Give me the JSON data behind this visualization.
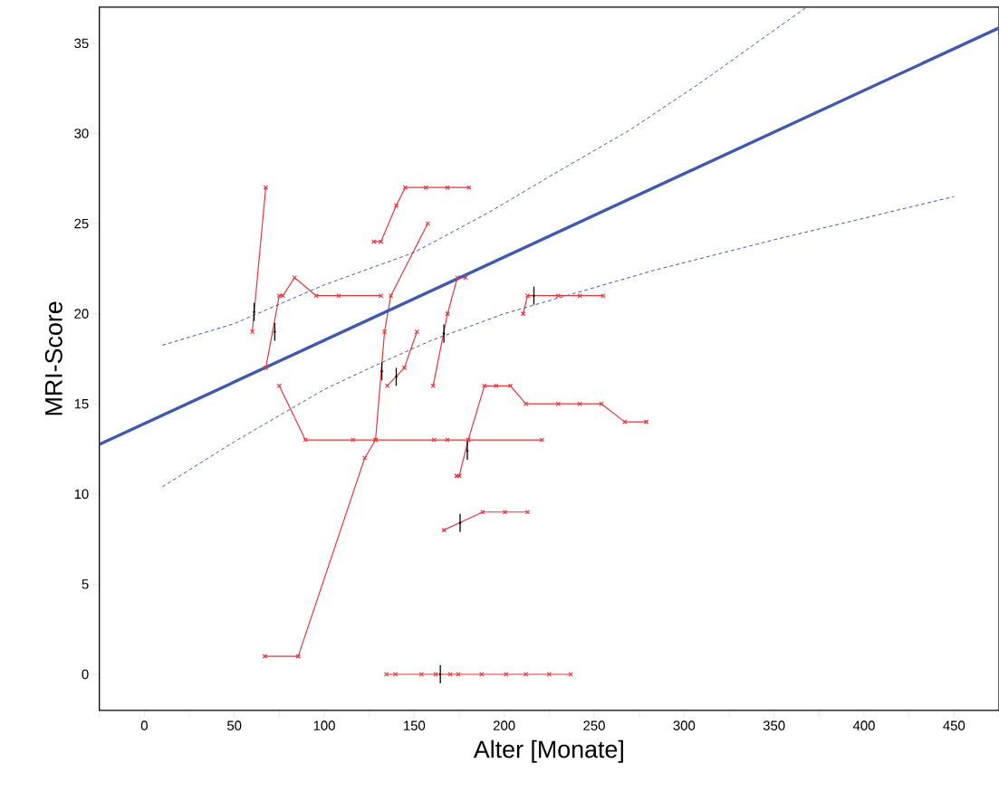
{
  "chart_data": {
    "type": "line",
    "xlabel": "Alter [Monate]",
    "ylabel": "MRI-Score",
    "xlim": [
      -25,
      475
    ],
    "ylim": [
      -2,
      37
    ],
    "xticks": [
      {
        "value": -25,
        "label": null
      },
      0,
      {
        "value": 25,
        "label": null
      },
      50,
      {
        "value": 75,
        "label": null
      },
      100,
      {
        "value": 125,
        "label": null
      },
      150,
      {
        "value": 175,
        "label": null
      },
      200,
      {
        "value": 225,
        "label": null
      },
      250,
      {
        "value": 275,
        "label": null
      },
      300,
      {
        "value": 325,
        "label": null
      },
      350,
      {
        "value": 375,
        "label": null
      },
      400,
      {
        "value": 425,
        "label": null
      },
      450,
      {
        "value": 475,
        "label": null
      }
    ],
    "yticks": [
      0,
      5,
      10,
      15,
      20,
      25,
      30,
      35
    ],
    "series": [
      {
        "color": "#e8353b",
        "marker": "cross",
        "x": [
          60,
          67.5
        ],
        "values": [
          19,
          27
        ]
      },
      {
        "color": "#e8353b",
        "marker": "cross",
        "x": [
          67.5,
          75,
          77,
          83.5,
          95.5,
          108,
          131.5
        ],
        "values": [
          17,
          21,
          21,
          22,
          21,
          21,
          21
        ]
      },
      {
        "color": "#e8353b",
        "marker": "cross",
        "x": [
          67,
          85.5,
          122.5,
          128.5,
          133.5,
          137,
          157.5
        ],
        "values": [
          1,
          1,
          12,
          13,
          19,
          21,
          25
        ]
      },
      {
        "color": "#e8353b",
        "marker": "cross",
        "x": [
          75,
          89.5,
          116,
          128.5,
          161,
          168.5,
          180,
          221
        ],
        "values": [
          16,
          13,
          13,
          13,
          13,
          13,
          13,
          13
        ]
      },
      {
        "color": "#e8353b",
        "marker": "cross",
        "x": [
          135,
          144.5,
          151.5
        ],
        "values": [
          16,
          17,
          19
        ]
      },
      {
        "color": "#e8353b",
        "marker": "cross",
        "x": [
          160.5,
          168.5,
          174,
          178.5
        ],
        "values": [
          16,
          20,
          22,
          22
        ]
      },
      {
        "color": "#e8353b",
        "marker": "cross",
        "x": [
          127.5,
          131.5,
          140,
          145,
          156.5,
          168.5,
          180.5
        ],
        "values": [
          24,
          24,
          26,
          27,
          27,
          27,
          27
        ]
      },
      {
        "color": "#e8353b",
        "marker": "cross",
        "x": [
          210.5,
          213,
          230,
          242,
          255
        ],
        "values": [
          20,
          21,
          21,
          21,
          21
        ]
      },
      {
        "color": "#e8353b",
        "marker": "cross",
        "x": [
          173.5,
          175,
          180,
          189,
          195.5,
          203.5,
          212,
          230,
          242,
          254,
          267,
          279
        ],
        "values": [
          11,
          11,
          13,
          16,
          16,
          16,
          15,
          15,
          15,
          15,
          14,
          14
        ]
      },
      {
        "color": "#e8353b",
        "marker": "cross",
        "x": [
          166.5,
          188,
          200.5,
          213
        ],
        "values": [
          8,
          9,
          9,
          9
        ]
      },
      {
        "color": "#e8353b",
        "marker": "cross",
        "x": [
          134.5,
          139.5,
          154,
          162,
          170,
          174.5,
          187.5,
          201,
          212,
          225,
          237
        ],
        "values": [
          0,
          0,
          0,
          0,
          0,
          0,
          0,
          0,
          0,
          0,
          0
        ]
      },
      {
        "color": "#3f59ae",
        "marker": "none",
        "line_style": "solid",
        "x": [
          -25,
          475
        ],
        "values": [
          12.75,
          35.85
        ]
      },
      {
        "color": "#3f59ae",
        "marker": "none",
        "line_style": "dashed",
        "x": [
          10,
          50,
          100,
          150,
          192,
          225,
          270,
          309,
          368
        ],
        "values": [
          18.25,
          19.45,
          21.6,
          23.4,
          25.65,
          27.6,
          30.2,
          32.8,
          37
        ]
      },
      {
        "color": "#3f59ae",
        "marker": "none",
        "line_style": "dashed",
        "x": [
          10,
          50,
          100,
          132,
          159,
          200,
          283,
          350,
          450
        ],
        "values": [
          10.4,
          12.9,
          15.8,
          17.3,
          18.5,
          20.0,
          22.4,
          24.1,
          26.5
        ]
      },
      {
        "type": "scatter",
        "color": "#000000",
        "marker": "circle",
        "x": [
          61,
          72.5,
          132,
          140,
          166.5,
          216.5,
          179.5,
          175.5,
          164.5
        ],
        "values": [
          20.1,
          19,
          16.8,
          16.5,
          18.9,
          21,
          12.4,
          8.4,
          0
        ],
        "errors": [
          0.5,
          0.5,
          0.5,
          0.5,
          0.5,
          0.5,
          0.5,
          0.5,
          0.5
        ]
      }
    ]
  }
}
